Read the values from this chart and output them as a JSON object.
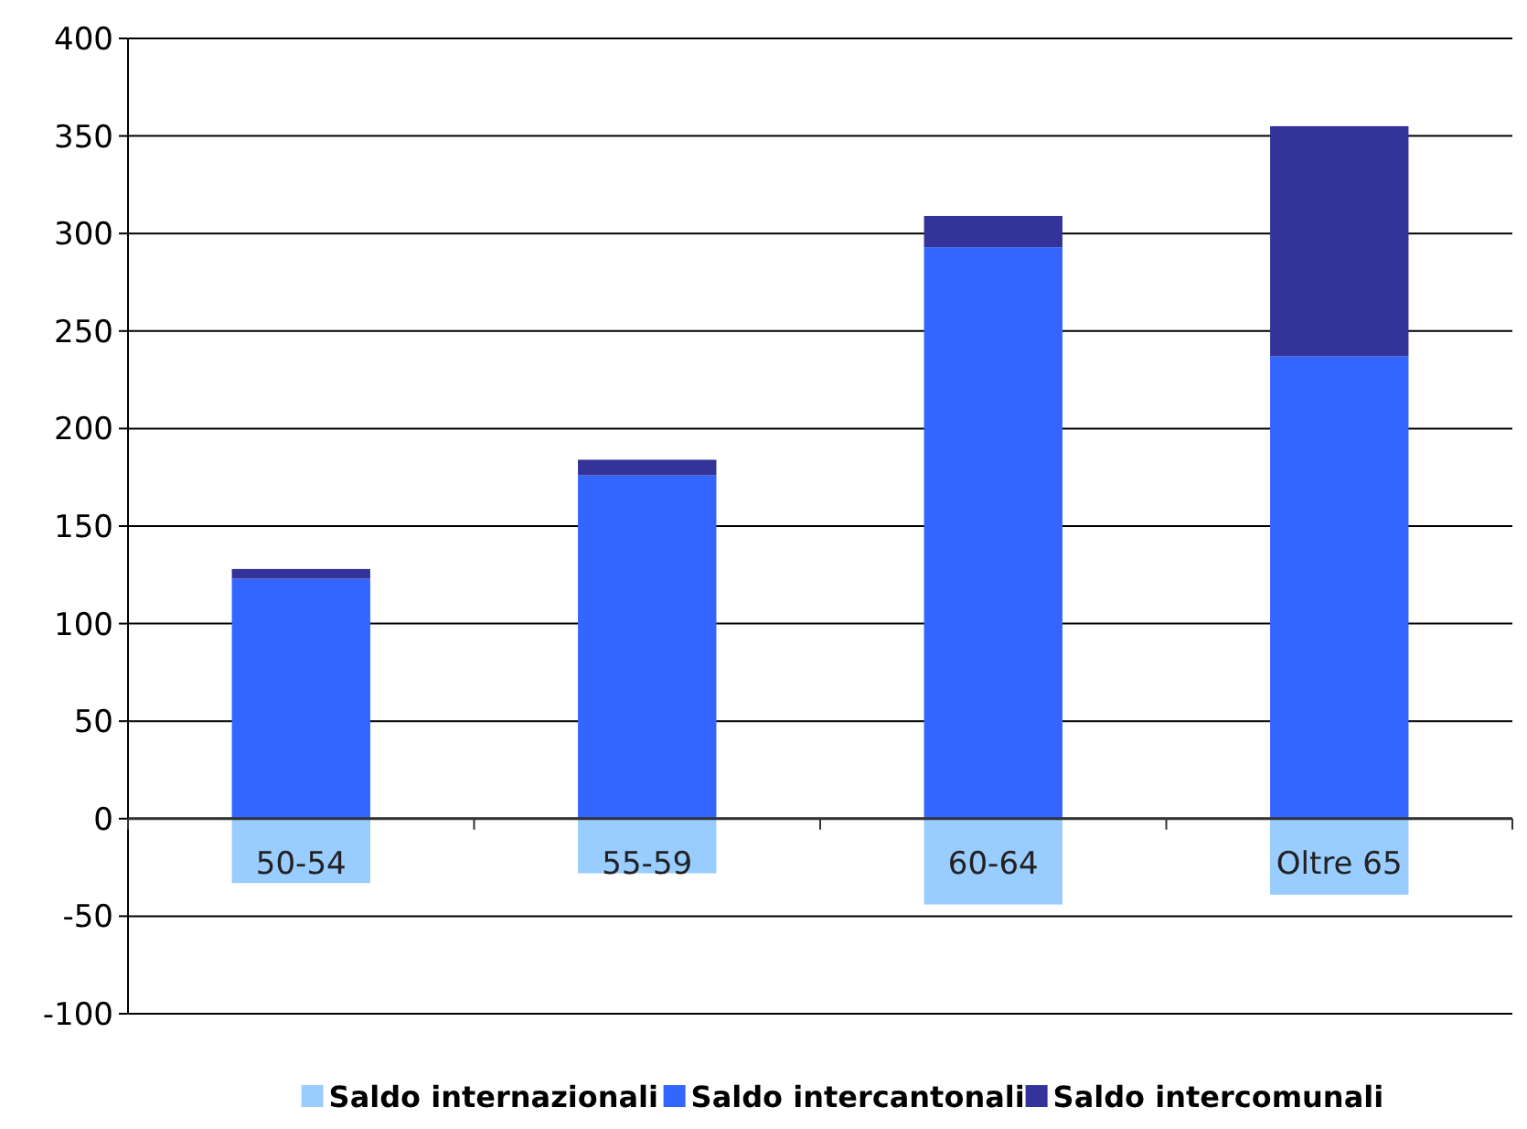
{
  "chart_data": {
    "type": "bar",
    "stacked": true,
    "categories": [
      "50-54",
      "55-59",
      "60-64",
      "Oltre 65"
    ],
    "series": [
      {
        "name": "Saldo internazionali",
        "color": "#99ccff",
        "values": [
          -33,
          -28,
          -44,
          -39
        ]
      },
      {
        "name": "Saldo intercantonali",
        "color": "#3366ff",
        "values": [
          123,
          176,
          293,
          237
        ]
      },
      {
        "name": "Saldo intercomunali",
        "color": "#333399",
        "values": [
          5,
          8,
          16,
          118
        ]
      }
    ],
    "ylim": [
      -100,
      400
    ],
    "yticks": [
      -100,
      -50,
      0,
      50,
      100,
      150,
      200,
      250,
      300,
      350,
      400
    ],
    "grid": "y",
    "legend": "bottom"
  }
}
